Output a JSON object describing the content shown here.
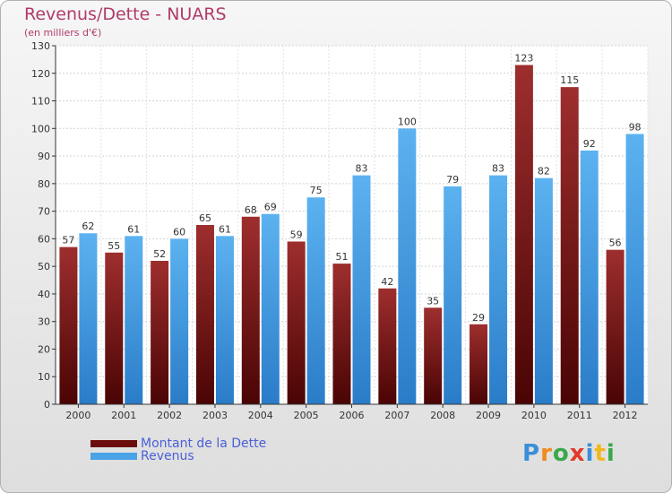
{
  "header": {
    "title": "Revenus/Dette - NUARS",
    "subtitle": "(en milliers d'€)"
  },
  "legend": {
    "items": [
      {
        "label": "Montant de la Dette",
        "color": "#6b0c0c"
      },
      {
        "label": "Revenus",
        "color": "#4aa3e6"
      }
    ]
  },
  "logo": {
    "text": "Proxiti",
    "letters": [
      {
        "ch": "P",
        "color": "#3a8fd8"
      },
      {
        "ch": "r",
        "color": "#f08a1c"
      },
      {
        "ch": "o",
        "color": "#3aa84a"
      },
      {
        "ch": "x",
        "color": "#e23a2a"
      },
      {
        "ch": "i",
        "color": "#3a8fd8"
      },
      {
        "ch": "t",
        "color": "#f0b81c"
      },
      {
        "ch": "i",
        "color": "#3aa84a"
      }
    ]
  },
  "chart_data": {
    "type": "bar",
    "title": "Revenus/Dette - NUARS",
    "subtitle": "(en milliers d'€)",
    "categories": [
      "2000",
      "2001",
      "2002",
      "2003",
      "2004",
      "2005",
      "2006",
      "2007",
      "2008",
      "2009",
      "2010",
      "2011",
      "2012"
    ],
    "series": [
      {
        "name": "Montant de la Dette",
        "color": "#6b0c0c",
        "values": [
          57,
          55,
          52,
          65,
          68,
          59,
          51,
          42,
          35,
          29,
          123,
          115,
          56
        ]
      },
      {
        "name": "Revenus",
        "color": "#4aa3e6",
        "values": [
          62,
          61,
          60,
          61,
          69,
          75,
          83,
          100,
          79,
          83,
          82,
          92,
          98
        ]
      }
    ],
    "ylim": [
      0,
      130
    ],
    "yticks": [
      0,
      10,
      20,
      30,
      40,
      50,
      60,
      70,
      80,
      90,
      100,
      110,
      120,
      130
    ],
    "grid": true,
    "legend_position": "bottom-left"
  }
}
